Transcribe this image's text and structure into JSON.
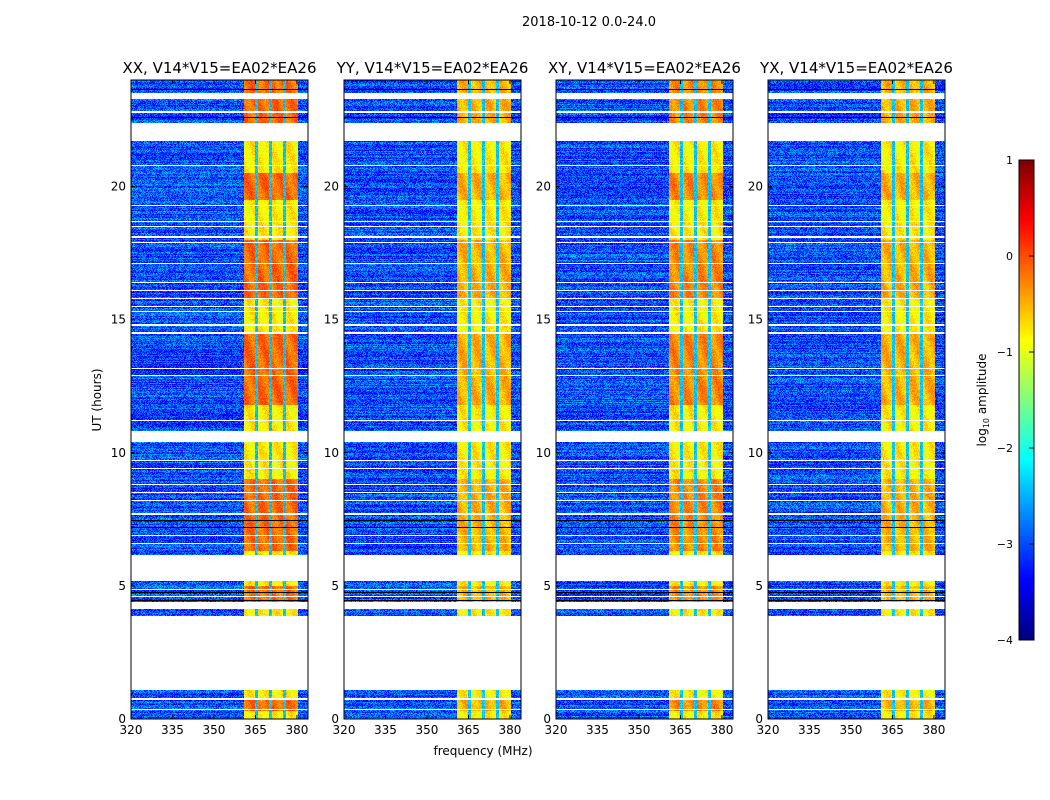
{
  "chart_data": {
    "type": "heatmap",
    "title": "2018-10-12 0.0-24.0",
    "xlabel": "frequency (MHz)",
    "ylabel": "UT (hours)",
    "xlim": [
      320,
      384
    ],
    "ylim": [
      0,
      24
    ],
    "xticks": [
      320,
      335,
      350,
      365,
      380
    ],
    "yticks": [
      0,
      5,
      10,
      15,
      20
    ],
    "panels": [
      {
        "title": "XX, V14*V15=EA02*EA26",
        "pol": "XX",
        "band_boost": 0.35
      },
      {
        "title": "YY, V14*V15=EA02*EA26",
        "pol": "YY",
        "band_boost": 0.0
      },
      {
        "title": "XY, V14*V15=EA02*EA26",
        "pol": "XY",
        "band_boost": 0.2
      },
      {
        "title": "YX, V14*V15=EA02*EA26",
        "pol": "YX",
        "band_boost": 0.0
      }
    ],
    "background_log10_amplitude": -3.0,
    "rfi_band_mhz": [
      361,
      380.5
    ],
    "rfi_band_log10_amplitude": -0.8,
    "rfi_band_notches_mhz": [
      365.5,
      370.5,
      375.5
    ],
    "strong_rfi_ut_ranges": [
      [
        0.3,
        0.8
      ],
      [
        4.4,
        5.0
      ],
      [
        6.3,
        9.0
      ],
      [
        11.8,
        14.5
      ],
      [
        15.8,
        18.0
      ],
      [
        19.5,
        20.5
      ],
      [
        22.4,
        24.0
      ]
    ],
    "data_gaps_ut": [
      [
        1.1,
        3.85
      ],
      [
        4.15,
        4.4
      ],
      [
        5.2,
        6.15
      ],
      [
        10.4,
        10.8
      ],
      [
        21.7,
        22.4
      ],
      [
        23.3,
        23.5
      ]
    ],
    "flagged_lines_ut": [
      0.35,
      0.75,
      4.6,
      4.85,
      6.6,
      6.9,
      7.7,
      8.2,
      8.5,
      8.8,
      9.4,
      9.7,
      11.2,
      12.9,
      13.15,
      14.5,
      14.8,
      15.3,
      15.5,
      15.8,
      16.1,
      16.4,
      17.1,
      17.9,
      18.1,
      18.5,
      18.7,
      19.3,
      20.8,
      22.8
    ],
    "black_lines_ut": [
      3.85,
      4.45,
      4.75,
      7.2,
      7.45,
      22.6,
      23.65
    ],
    "colorbar": {
      "label": "log10 amplitude",
      "label_base": "log",
      "label_sub": "10",
      "label_rest": " amplitude",
      "range": [
        -4,
        1
      ],
      "ticks": [
        1,
        0,
        -1,
        -2,
        -3,
        -4
      ],
      "tick_labels": [
        "1",
        "0",
        "−1",
        "−2",
        "−3",
        "−4"
      ],
      "colormap": "jet"
    }
  }
}
